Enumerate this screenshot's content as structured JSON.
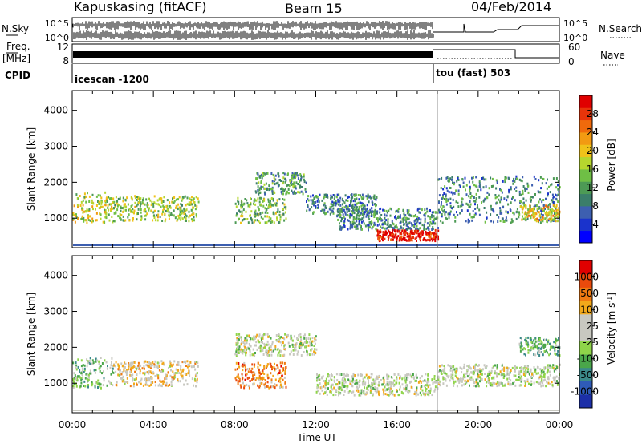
{
  "header": {
    "station": "Kapuskasing (fitACF)",
    "beam": "Beam 15",
    "date": "04/Feb/2014"
  },
  "params": {
    "left_labels": [
      "N.Sky",
      "Freq.",
      "[MHz]",
      "CPID"
    ],
    "right_labels": [
      "N.Search",
      "Nave"
    ],
    "noise_ticks_left": [
      "10^5",
      "10^0"
    ],
    "noise_ticks_right": [
      "10^5",
      "10^0"
    ],
    "freq_ticks": [
      "12",
      "8"
    ],
    "nave_ticks": [
      "60",
      "0"
    ],
    "cpid_segments": [
      {
        "label": "icescan -1200",
        "start": 0,
        "end": 18
      },
      {
        "label": "tou (fast) 503",
        "start": 18,
        "end": 24
      }
    ]
  },
  "chart_data": [
    {
      "type": "heatmap",
      "panel": "power",
      "xlabel": "Time UT",
      "ylabel": "Slant Range [km]",
      "x_ticks": [
        "00:00",
        "04:00",
        "08:00",
        "12:00",
        "16:00",
        "20:00",
        "00:00"
      ],
      "x_range_hours": [
        0,
        24
      ],
      "y_ticks": [
        1000,
        2000,
        3000,
        4000
      ],
      "ylim": [
        180,
        4550
      ],
      "colorbar": {
        "label": "Power [dB]",
        "ticks": [
          "28",
          "24",
          "20",
          "16",
          "12",
          "8",
          "4"
        ],
        "colors": [
          "#0000ff",
          "#1a33cc",
          "#3d5fb0",
          "#3b7e6a",
          "#4d9a55",
          "#6fbf45",
          "#b5d62e",
          "#f0c21a",
          "#f29a12",
          "#ef6a0c",
          "#e8340a",
          "#e00000"
        ]
      },
      "echo_bands": [
        {
          "t0": 0.0,
          "t1": 2.0,
          "r0": 900,
          "r1": 1750,
          "level": 0.55
        },
        {
          "t0": 2.0,
          "t1": 6.2,
          "r0": 950,
          "r1": 1650,
          "level": 0.5
        },
        {
          "t0": 8.0,
          "t1": 10.5,
          "r0": 900,
          "r1": 1600,
          "level": 0.45
        },
        {
          "t0": 9.0,
          "t1": 11.5,
          "r0": 1700,
          "r1": 2300,
          "level": 0.35
        },
        {
          "t0": 11.5,
          "t1": 15.0,
          "r0": 1100,
          "r1": 1700,
          "level": 0.3
        },
        {
          "t0": 13.0,
          "t1": 18.0,
          "r0": 700,
          "r1": 1300,
          "level": 0.3
        },
        {
          "t0": 15.0,
          "t1": 18.0,
          "r0": 400,
          "r1": 700,
          "level": 0.95
        },
        {
          "t0": 18.0,
          "t1": 24.0,
          "r0": 900,
          "r1": 2200,
          "level": 0.3
        },
        {
          "t0": 22.0,
          "t1": 24.0,
          "r0": 950,
          "r1": 1400,
          "level": 0.6
        }
      ]
    },
    {
      "type": "heatmap",
      "panel": "velocity",
      "xlabel": "Time UT",
      "ylabel": "Slant Range [km]",
      "x_ticks": [
        "00:00",
        "04:00",
        "08:00",
        "12:00",
        "16:00",
        "20:00",
        "00:00"
      ],
      "x_range_hours": [
        0,
        24
      ],
      "y_ticks": [
        1000,
        2000,
        3000,
        4000
      ],
      "ylim": [
        180,
        4550
      ],
      "colorbar": {
        "label": "Velocity [m s",
        "label_sup": "-1",
        "label_end": "]",
        "ticks": [
          "1000",
          "500",
          "100",
          "25",
          "-25",
          "-100",
          "-500",
          "-1000"
        ],
        "colors": [
          "#1c2fa8",
          "#2f5bb8",
          "#3b8a8a",
          "#4aa64a",
          "#8fd44a",
          "#c8c8c0",
          "#c8c8c0",
          "#f2a81a",
          "#ef7a12",
          "#ea4a0c",
          "#e00000"
        ]
      },
      "echo_bands": [
        {
          "t0": 0.0,
          "t1": 2.0,
          "r0": 900,
          "r1": 1750,
          "level": 0.4
        },
        {
          "t0": 2.0,
          "t1": 6.2,
          "r0": 950,
          "r1": 1650,
          "level": 0.6
        },
        {
          "t0": 8.0,
          "t1": 10.5,
          "r0": 900,
          "r1": 1600,
          "level": 0.75
        },
        {
          "t0": 8.0,
          "t1": 12.0,
          "r0": 1800,
          "r1": 2400,
          "level": 0.5
        },
        {
          "t0": 12.0,
          "t1": 18.0,
          "r0": 700,
          "r1": 1300,
          "level": 0.5
        },
        {
          "t0": 18.0,
          "t1": 24.0,
          "r0": 950,
          "r1": 1550,
          "level": 0.5
        },
        {
          "t0": 22.0,
          "t1": 24.0,
          "r0": 1800,
          "r1": 2300,
          "level": 0.35
        }
      ]
    }
  ]
}
